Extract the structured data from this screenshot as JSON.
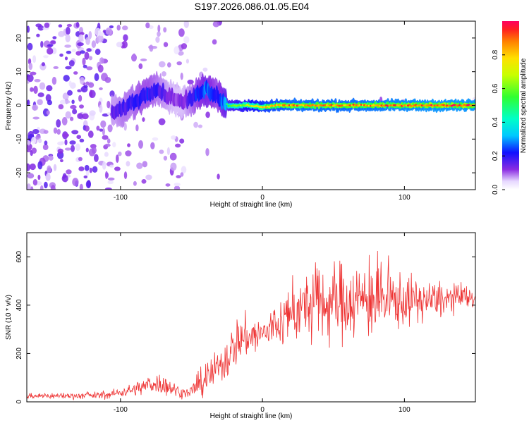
{
  "title": "S197.2026.086.01.05.E04",
  "chart_data": [
    {
      "type": "heatmap",
      "title": "S197.2026.086.01.05.E04",
      "xlabel": "Height of straight line (km)",
      "ylabel": "Frequency (Hz)",
      "xlim": [
        -166,
        150
      ],
      "ylim": [
        -25,
        25
      ],
      "xticks": [
        -100,
        0,
        100
      ],
      "yticks": [
        -20,
        -10,
        0,
        10,
        20
      ],
      "colorbar": {
        "label": "Normalized spectral amplitude",
        "range": [
          0,
          1
        ],
        "ticks": [
          "0.0",
          "0.2",
          "0.4",
          "0.6",
          "0.8"
        ]
      },
      "ridge": {
        "description_free": true,
        "x": [
          -104,
          -98,
          -92,
          -86,
          -80,
          -74,
          -68,
          -62,
          -56,
          -50,
          -44,
          -40,
          -36,
          -32,
          -28,
          -24,
          -20,
          -10,
          0,
          10,
          20,
          40,
          60,
          80,
          100,
          120,
          150
        ],
        "y": [
          -2,
          -1,
          1,
          2,
          4,
          5,
          3,
          2,
          1,
          2,
          4,
          5,
          4,
          3,
          1,
          0,
          0,
          0,
          -0.5,
          0,
          0,
          0,
          0,
          0,
          0,
          0,
          0
        ],
        "amplitude": [
          0.25,
          0.3,
          0.3,
          0.35,
          0.35,
          0.3,
          0.25,
          0.2,
          0.2,
          0.3,
          0.4,
          0.45,
          0.4,
          0.35,
          0.45,
          0.55,
          0.6,
          0.7,
          0.8,
          0.85,
          0.9,
          0.9,
          0.9,
          0.92,
          0.95,
          0.97,
          0.97
        ]
      }
    },
    {
      "type": "line",
      "xlabel": "Height of straight line (km)",
      "ylabel": "SNR (10 * v/v)",
      "xlim": [
        -166,
        150
      ],
      "ylim": [
        0,
        700
      ],
      "xticks": [
        -100,
        0,
        100
      ],
      "yticks": [
        0,
        200,
        400,
        600
      ],
      "color": "#ee3333",
      "series": [
        {
          "name": "SNR",
          "x": [
            -166,
            -150,
            -130,
            -110,
            -95,
            -85,
            -75,
            -65,
            -58,
            -52,
            -45,
            -38,
            -30,
            -25,
            -18,
            -12,
            -6,
            0,
            5,
            10,
            15,
            20,
            25,
            30,
            35,
            40,
            45,
            50,
            55,
            60,
            65,
            70,
            75,
            80,
            85,
            90,
            95,
            100,
            110,
            120,
            130,
            140,
            150
          ],
          "mean": [
            25,
            25,
            25,
            28,
            45,
            60,
            80,
            60,
            40,
            35,
            70,
            100,
            150,
            180,
            250,
            270,
            270,
            280,
            300,
            320,
            340,
            360,
            380,
            390,
            400,
            400,
            410,
            410,
            420,
            420,
            420,
            420,
            420,
            420,
            420,
            420,
            420,
            420,
            420,
            420,
            420,
            430,
            430
          ],
          "spread": [
            12,
            12,
            12,
            14,
            20,
            30,
            40,
            35,
            20,
            18,
            50,
            60,
            70,
            80,
            90,
            80,
            80,
            60,
            80,
            90,
            100,
            110,
            120,
            130,
            140,
            150,
            150,
            150,
            150,
            150,
            150,
            140,
            140,
            140,
            130,
            120,
            110,
            100,
            80,
            70,
            60,
            50,
            40
          ]
        }
      ]
    }
  ]
}
